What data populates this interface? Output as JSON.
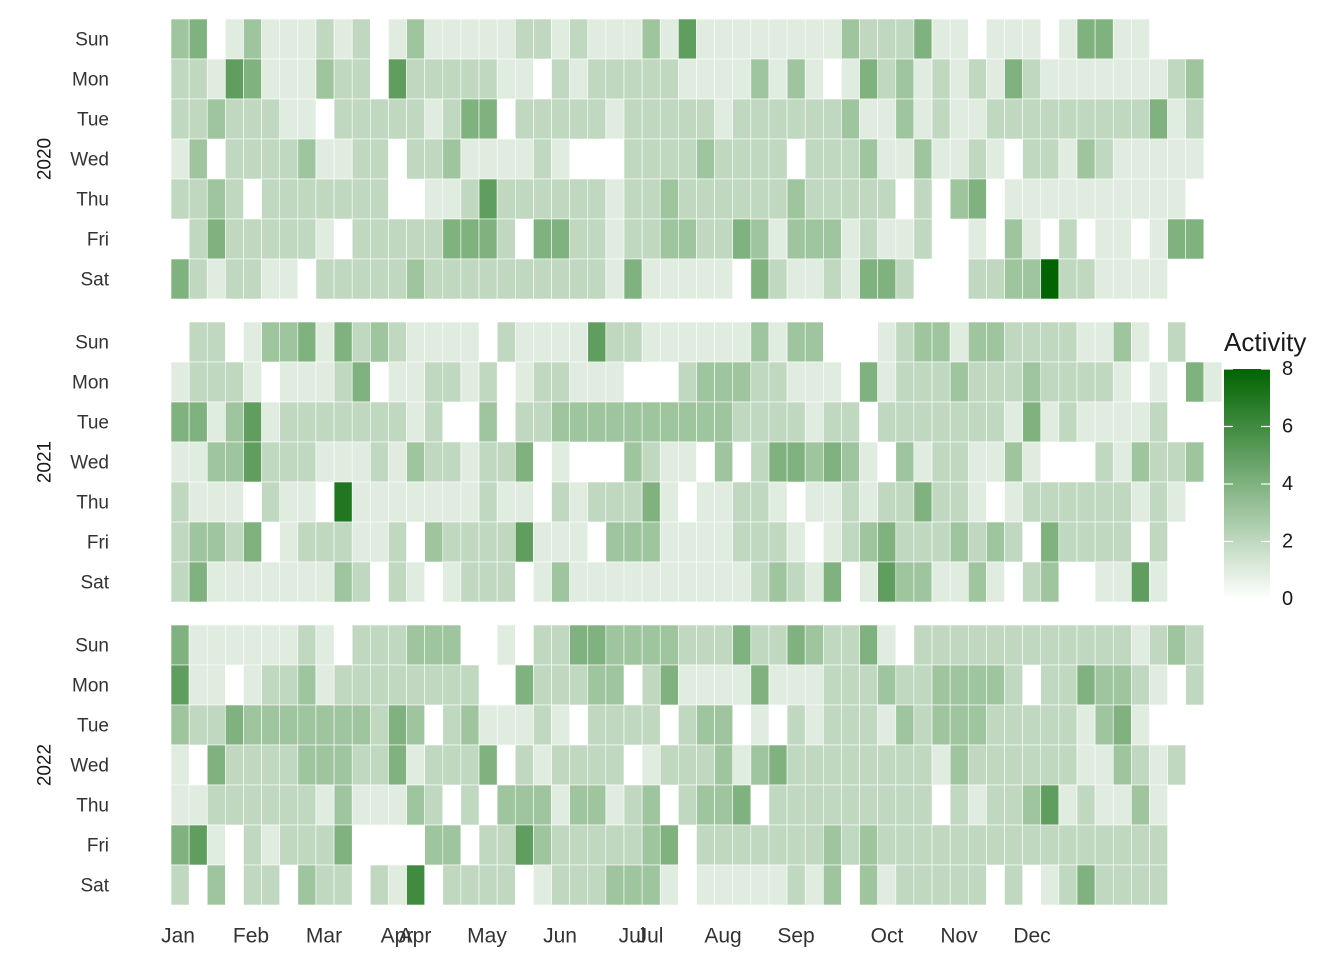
{
  "chart_data": {
    "type": "heatmap",
    "title": "",
    "xlabel": "",
    "ylabel": "",
    "week_days": [
      "Sun",
      "Mon",
      "Tue",
      "Wed",
      "Thu",
      "Fri",
      "Sat"
    ],
    "month_ticks": [
      {
        "label": "Jan",
        "week": 1
      },
      {
        "label": "Feb",
        "week": 5
      },
      {
        "label": "Mar",
        "week": 9
      },
      {
        "label": "Apr",
        "week": 13
      },
      {
        "label": "Apr",
        "week": 14
      },
      {
        "label": "May",
        "week": 18
      },
      {
        "label": "Jun",
        "week": 22
      },
      {
        "label": "Jul",
        "week": 26
      },
      {
        "label": "Jul",
        "week": 27
      },
      {
        "label": "Aug",
        "week": 31
      },
      {
        "label": "Sep",
        "week": 35
      },
      {
        "label": "Oct",
        "week": 40
      },
      {
        "label": "Nov",
        "week": 44
      },
      {
        "label": "Dec",
        "week": 48
      }
    ],
    "color_scale": {
      "low": "#ffffff",
      "high": "#006400",
      "min": 0,
      "max": 8
    },
    "legend": {
      "title": "Activity",
      "ticks": [
        0,
        2,
        4,
        6,
        8
      ],
      "position": "right"
    },
    "panels": [
      {
        "year": "2020",
        "rows": {
          "Sun": [
            3,
            4,
            0,
            1,
            3,
            1,
            1,
            1,
            2,
            1,
            2,
            0,
            1,
            3,
            1,
            1,
            1,
            1,
            1,
            2,
            2,
            1,
            2,
            1,
            1,
            1,
            3,
            1,
            5,
            1,
            1,
            1,
            1,
            1,
            1,
            1,
            1,
            3,
            2,
            2,
            2,
            4,
            1,
            1,
            0,
            1,
            1,
            1,
            0,
            1,
            4,
            4,
            1,
            1
          ],
          "Mon": [
            2,
            2,
            1,
            5,
            4,
            1,
            1,
            1,
            3,
            2,
            2,
            0,
            5,
            2,
            2,
            2,
            2,
            2,
            1,
            1,
            0,
            2,
            1,
            2,
            2,
            2,
            2,
            2,
            1,
            1,
            1,
            1,
            3,
            1,
            3,
            1,
            0,
            1,
            4,
            2,
            3,
            1,
            2,
            1,
            2,
            1,
            4,
            2,
            1,
            1,
            1,
            1,
            1,
            1,
            1,
            2,
            3
          ],
          "Tue": [
            2,
            2,
            3,
            2,
            2,
            2,
            1,
            1,
            0,
            2,
            2,
            2,
            2,
            2,
            1,
            2,
            4,
            4,
            0,
            2,
            2,
            2,
            2,
            2,
            1,
            2,
            2,
            2,
            2,
            2,
            1,
            2,
            2,
            2,
            2,
            2,
            2,
            3,
            1,
            1,
            3,
            1,
            2,
            1,
            1,
            2,
            2,
            2,
            2,
            2,
            2,
            2,
            2,
            2,
            4,
            1,
            2
          ],
          "Wed": [
            1,
            3,
            0,
            2,
            2,
            2,
            2,
            3,
            1,
            1,
            2,
            2,
            0,
            2,
            2,
            3,
            1,
            1,
            1,
            1,
            2,
            1,
            0,
            0,
            0,
            2,
            2,
            2,
            2,
            3,
            2,
            2,
            2,
            2,
            0,
            2,
            2,
            2,
            3,
            1,
            1,
            3,
            1,
            1,
            2,
            1,
            0,
            2,
            2,
            1,
            3,
            2,
            1,
            1,
            1,
            1,
            1
          ],
          "Thu": [
            2,
            2,
            3,
            2,
            0,
            2,
            2,
            2,
            2,
            2,
            2,
            2,
            0,
            0,
            1,
            1,
            2,
            5,
            2,
            2,
            2,
            2,
            2,
            2,
            1,
            2,
            2,
            3,
            2,
            2,
            2,
            2,
            2,
            2,
            3,
            2,
            2,
            2,
            2,
            2,
            0,
            2,
            0,
            3,
            4,
            0,
            1,
            1,
            1,
            1,
            1,
            1,
            1,
            1,
            1,
            1
          ],
          "Fri": [
            0,
            2,
            4,
            2,
            2,
            2,
            2,
            2,
            1,
            0,
            2,
            2,
            2,
            2,
            2,
            4,
            4,
            4,
            2,
            0,
            4,
            4,
            2,
            2,
            1,
            2,
            2,
            3,
            3,
            2,
            2,
            4,
            3,
            1,
            3,
            3,
            3,
            1,
            2,
            1,
            1,
            2,
            0,
            0,
            1,
            0,
            3,
            1,
            0,
            2,
            0,
            1,
            1,
            0,
            1,
            4,
            4
          ],
          "Sat": [
            4,
            2,
            1,
            2,
            2,
            1,
            1,
            0,
            2,
            2,
            2,
            2,
            2,
            3,
            2,
            2,
            2,
            2,
            2,
            2,
            2,
            2,
            2,
            2,
            1,
            4,
            1,
            1,
            1,
            1,
            1,
            0,
            4,
            2,
            1,
            1,
            2,
            1,
            4,
            4,
            2,
            0,
            0,
            0,
            2,
            2,
            3,
            3,
            8,
            2,
            2,
            1,
            1,
            1,
            1
          ]
        }
      },
      {
        "year": "2021",
        "rows": {
          "Sun": [
            0,
            2,
            2,
            0,
            1,
            3,
            3,
            4,
            1,
            4,
            2,
            3,
            2,
            1,
            1,
            1,
            1,
            0,
            2,
            1,
            1,
            1,
            1,
            5,
            2,
            2,
            1,
            1,
            1,
            1,
            1,
            1,
            3,
            1,
            3,
            3,
            0,
            0,
            0,
            1,
            2,
            3,
            3,
            1,
            3,
            3,
            2,
            2,
            2,
            2,
            1,
            1,
            3,
            1,
            0,
            2
          ],
          "Mon": [
            1,
            2,
            2,
            2,
            1,
            0,
            1,
            1,
            1,
            2,
            4,
            0,
            1,
            1,
            2,
            2,
            1,
            2,
            0,
            1,
            2,
            2,
            1,
            1,
            1,
            0,
            0,
            0,
            2,
            3,
            3,
            3,
            2,
            2,
            1,
            1,
            1,
            0,
            4,
            1,
            2,
            2,
            2,
            3,
            2,
            2,
            2,
            3,
            2,
            2,
            2,
            2,
            1,
            0,
            1,
            0,
            4,
            1
          ],
          "Tue": [
            4,
            4,
            1,
            3,
            5,
            1,
            2,
            2,
            2,
            2,
            2,
            2,
            2,
            1,
            2,
            0,
            0,
            3,
            0,
            2,
            2,
            3,
            3,
            3,
            3,
            3,
            3,
            3,
            3,
            3,
            3,
            2,
            2,
            2,
            2,
            1,
            2,
            2,
            0,
            2,
            2,
            2,
            2,
            2,
            2,
            2,
            1,
            4,
            1,
            2,
            1,
            1,
            1,
            1,
            2,
            0
          ],
          "Wed": [
            1,
            1,
            3,
            3,
            5,
            2,
            2,
            2,
            1,
            1,
            1,
            2,
            1,
            3,
            2,
            2,
            1,
            2,
            2,
            4,
            0,
            1,
            0,
            0,
            0,
            3,
            2,
            1,
            1,
            0,
            3,
            0,
            2,
            4,
            4,
            3,
            4,
            3,
            1,
            0,
            3,
            1,
            2,
            2,
            1,
            1,
            3,
            1,
            0,
            0,
            0,
            2,
            1,
            3,
            2,
            2,
            3
          ],
          "Thu": [
            2,
            1,
            1,
            1,
            0,
            2,
            1,
            1,
            0,
            7,
            1,
            1,
            1,
            1,
            1,
            1,
            1,
            2,
            1,
            1,
            0,
            2,
            1,
            2,
            2,
            2,
            4,
            1,
            0,
            1,
            1,
            2,
            2,
            1,
            0,
            1,
            1,
            2,
            1,
            2,
            2,
            4,
            2,
            2,
            1,
            0,
            1,
            2,
            2,
            2,
            2,
            2,
            2,
            1,
            2,
            1
          ],
          "Fri": [
            2,
            3,
            3,
            2,
            4,
            0,
            1,
            2,
            2,
            2,
            1,
            1,
            2,
            0,
            3,
            2,
            2,
            2,
            2,
            5,
            1,
            1,
            1,
            0,
            3,
            3,
            3,
            1,
            1,
            1,
            1,
            2,
            2,
            2,
            1,
            0,
            1,
            2,
            3,
            4,
            2,
            2,
            2,
            3,
            2,
            3,
            2,
            0,
            4,
            2,
            2,
            2,
            2,
            0,
            2
          ],
          "Sat": [
            2,
            4,
            1,
            1,
            1,
            1,
            1,
            1,
            1,
            3,
            2,
            0,
            2,
            1,
            0,
            1,
            2,
            2,
            2,
            0,
            1,
            3,
            1,
            1,
            1,
            1,
            1,
            1,
            1,
            1,
            1,
            1,
            2,
            3,
            2,
            1,
            4,
            0,
            1,
            5,
            3,
            3,
            1,
            1,
            3,
            1,
            0,
            2,
            3,
            0,
            0,
            1,
            1,
            5,
            1
          ]
        }
      },
      {
        "year": "2022",
        "rows": {
          "Sun": [
            4,
            1,
            1,
            1,
            1,
            1,
            1,
            2,
            1,
            0,
            2,
            2,
            2,
            3,
            3,
            3,
            0,
            0,
            1,
            0,
            2,
            2,
            4,
            4,
            3,
            3,
            3,
            3,
            2,
            2,
            2,
            4,
            2,
            2,
            4,
            3,
            2,
            2,
            4,
            1,
            0,
            2,
            2,
            2,
            2,
            2,
            2,
            2,
            2,
            2,
            2,
            2,
            2,
            1,
            2,
            3,
            2
          ],
          "Mon": [
            5,
            1,
            1,
            0,
            1,
            2,
            2,
            3,
            1,
            2,
            2,
            2,
            2,
            2,
            2,
            2,
            2,
            0,
            0,
            4,
            2,
            2,
            2,
            3,
            3,
            0,
            2,
            4,
            1,
            1,
            1,
            1,
            4,
            1,
            1,
            1,
            2,
            2,
            2,
            3,
            2,
            2,
            3,
            3,
            3,
            3,
            2,
            0,
            2,
            2,
            4,
            3,
            3,
            2,
            1,
            0,
            2
          ],
          "Tue": [
            3,
            2,
            2,
            4,
            3,
            3,
            3,
            3,
            3,
            3,
            3,
            2,
            4,
            3,
            0,
            2,
            3,
            1,
            1,
            1,
            2,
            1,
            0,
            2,
            2,
            2,
            2,
            0,
            2,
            3,
            3,
            0,
            1,
            0,
            2,
            1,
            2,
            2,
            2,
            1,
            3,
            2,
            3,
            3,
            3,
            2,
            2,
            2,
            2,
            2,
            1,
            3,
            4,
            1,
            0,
            0,
            0
          ],
          "Wed": [
            1,
            0,
            4,
            2,
            2,
            2,
            2,
            3,
            3,
            3,
            2,
            2,
            4,
            1,
            2,
            2,
            2,
            4,
            0,
            2,
            1,
            2,
            2,
            2,
            2,
            0,
            1,
            2,
            2,
            2,
            3,
            1,
            3,
            4,
            2,
            2,
            2,
            2,
            2,
            2,
            2,
            2,
            1,
            3,
            2,
            2,
            2,
            2,
            2,
            2,
            1,
            1,
            3,
            2,
            1,
            2
          ],
          "Thu": [
            1,
            1,
            2,
            2,
            2,
            2,
            2,
            2,
            1,
            3,
            1,
            1,
            1,
            3,
            2,
            0,
            2,
            0,
            3,
            3,
            3,
            1,
            3,
            3,
            1,
            2,
            3,
            0,
            2,
            3,
            3,
            4,
            0,
            2,
            2,
            2,
            2,
            2,
            2,
            2,
            2,
            2,
            0,
            2,
            1,
            2,
            2,
            3,
            5,
            1,
            2,
            1,
            1,
            3,
            1
          ],
          "Fri": [
            4,
            5,
            1,
            0,
            2,
            1,
            2,
            2,
            2,
            4,
            0,
            0,
            0,
            0,
            3,
            3,
            0,
            2,
            2,
            5,
            3,
            2,
            2,
            2,
            2,
            2,
            3,
            4,
            0,
            2,
            2,
            2,
            2,
            2,
            2,
            2,
            3,
            2,
            3,
            2,
            2,
            2,
            2,
            2,
            2,
            2,
            2,
            2,
            2,
            2,
            2,
            2,
            2,
            2,
            2
          ],
          "Sat": [
            2,
            0,
            3,
            0,
            2,
            2,
            0,
            3,
            2,
            2,
            0,
            2,
            1,
            6,
            0,
            2,
            2,
            2,
            2,
            0,
            1,
            2,
            2,
            2,
            3,
            3,
            3,
            1,
            0,
            1,
            1,
            1,
            1,
            1,
            2,
            1,
            3,
            0,
            3,
            1,
            2,
            2,
            2,
            2,
            2,
            0,
            2,
            0,
            1,
            2,
            4,
            2,
            2,
            2,
            2
          ]
        }
      }
    ]
  }
}
